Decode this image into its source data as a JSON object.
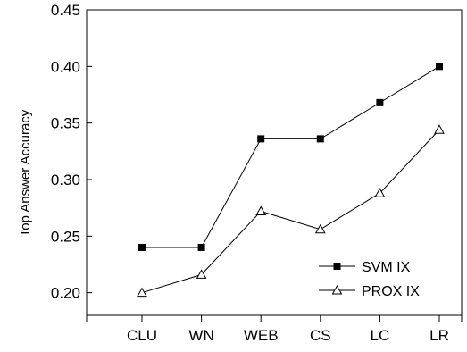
{
  "chart_data": {
    "type": "line",
    "title": "",
    "xlabel": "",
    "ylabel": "Top Answer Accuracy",
    "categories": [
      "CLU",
      "WN",
      "WEB",
      "CS",
      "LC",
      "LR"
    ],
    "ylim": [
      0.18,
      0.45
    ],
    "yticks": [
      "0.20",
      "0.25",
      "0.30",
      "0.35",
      "0.40",
      "0.45"
    ],
    "grid": false,
    "legend_position": "bottom-right",
    "series": [
      {
        "name": "SVM IX",
        "marker": "filled-square",
        "color": "#000000",
        "values": [
          0.24,
          0.24,
          0.336,
          0.336,
          0.368,
          0.4
        ]
      },
      {
        "name": "PROX IX",
        "marker": "open-triangle",
        "color": "#000000",
        "values": [
          0.2,
          0.216,
          0.272,
          0.256,
          0.288,
          0.344
        ]
      }
    ]
  }
}
